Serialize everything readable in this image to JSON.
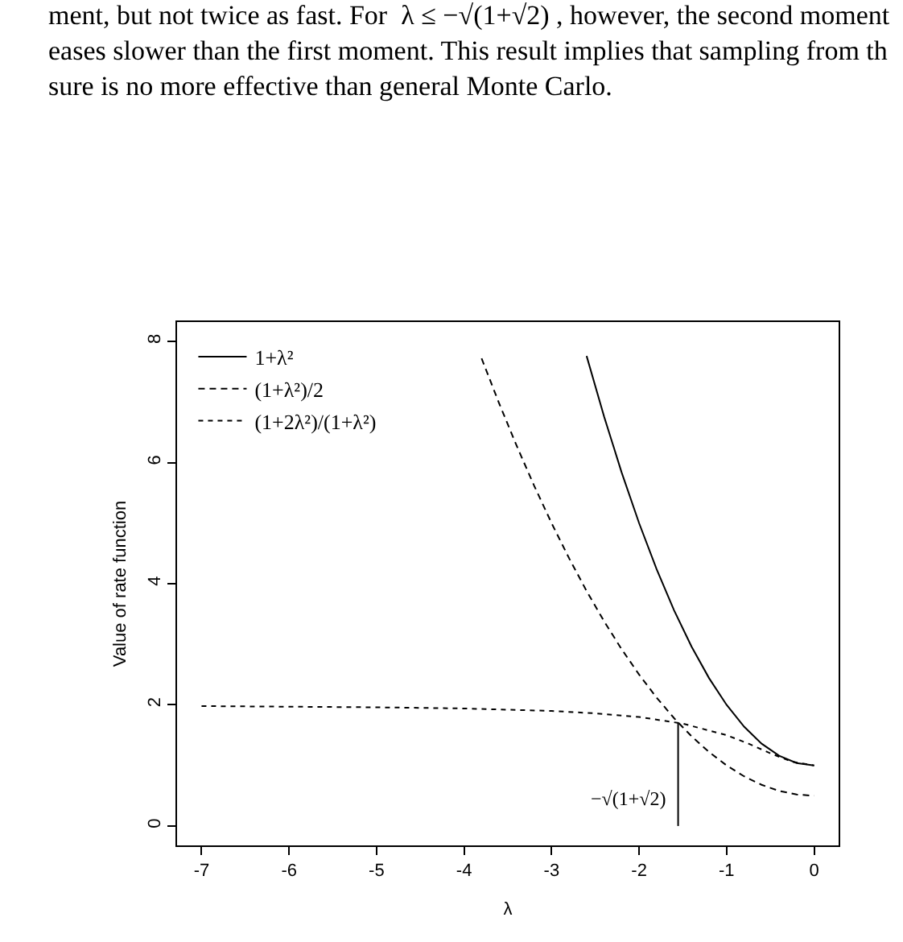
{
  "chart_data": {
    "type": "line",
    "xlabel": "λ",
    "ylabel": "Value of rate function",
    "xlim": [
      -7.28,
      0.28
    ],
    "ylim": [
      -0.32,
      8.32
    ],
    "xticks": [
      -7,
      -6,
      -5,
      -4,
      -3,
      -2,
      -1,
      0
    ],
    "yticks": [
      0,
      2,
      4,
      6,
      8
    ],
    "grid": false,
    "legend": "top left",
    "marker": "none",
    "series": [
      {
        "name": "1+λ²",
        "color": "#000000",
        "line_style": "solid",
        "x": [
          -2.6,
          -2.4,
          -2.2,
          -2,
          -1.8,
          -1.6,
          -1.4,
          -1.2,
          -1,
          -0.8,
          -0.6,
          -0.4,
          -0.2,
          0
        ],
        "values": [
          7.76,
          6.76,
          5.84,
          5,
          4.24,
          3.56,
          2.96,
          2.44,
          2,
          1.64,
          1.36,
          1.16,
          1.04,
          1
        ]
      },
      {
        "name": "(1+λ²)/2",
        "color": "#000000",
        "line_style": "dashed",
        "x": [
          -3.8,
          -3.6,
          -3.4,
          -3.2,
          -3,
          -2.8,
          -2.6,
          -2.4,
          -2.2,
          -2,
          -1.8,
          -1.6,
          -1.4,
          -1.2,
          -1,
          -0.8,
          -0.6,
          -0.4,
          -0.2,
          0
        ],
        "values": [
          7.72,
          6.98,
          6.28,
          5.62,
          5,
          4.42,
          3.88,
          3.38,
          2.92,
          2.5,
          2.12,
          1.78,
          1.48,
          1.22,
          1,
          0.82,
          0.68,
          0.58,
          0.52,
          0.5
        ]
      },
      {
        "name": "(1+2λ²)/(1+λ²)",
        "color": "#000000",
        "line_style": "dotted",
        "x": [
          -7,
          -6,
          -5,
          -4,
          -3,
          -2.5,
          -2,
          -1.5,
          -1,
          -0.75,
          -0.5,
          -0.25,
          0
        ],
        "values": [
          1.98,
          1.97,
          1.96,
          1.94,
          1.9,
          1.86,
          1.8,
          1.69,
          1.5,
          1.36,
          1.2,
          1.06,
          1
        ]
      },
      {
        "color": "#000000",
        "line_style": "solid",
        "x": [
          -1.554,
          -1.554
        ],
        "values": [
          0,
          1.71
        ]
      }
    ],
    "annotations": [
      "ment, but not twice as fast. For  λ ≤ −√(1+√2) , however, the second moment\neases slower than the first moment. This result implies that sampling from th\nsure is no more effective than general Monte Carlo.",
      "−√(1+√2)"
    ]
  }
}
